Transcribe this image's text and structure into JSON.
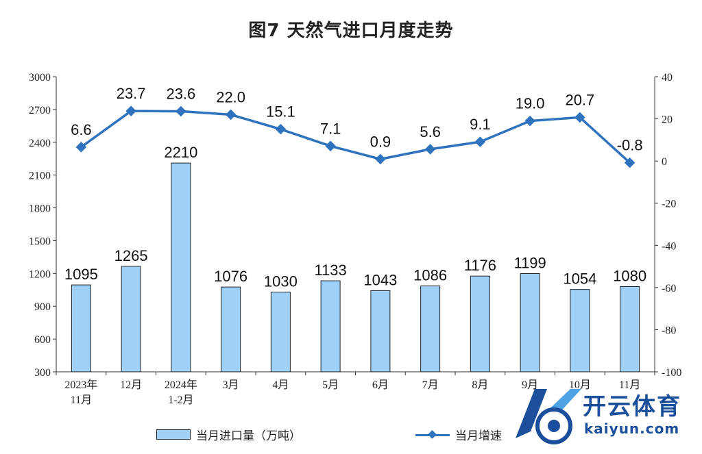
{
  "title": "图7  天然气进口月度走势",
  "legend": {
    "bar_label": "当月进口量（万吨）",
    "line_label": "当月增速"
  },
  "watermark": {
    "name": "开云体育",
    "domain": "kaiyun.com"
  },
  "colors": {
    "bar_fill": "#9fd0f7",
    "bar_stroke": "#222222",
    "line": "#2f73bf"
  },
  "chart_data": {
    "type": "bar+line",
    "categories": [
      "2023年\n11月",
      "12月",
      "2024年\n1-2月",
      "3月",
      "4月",
      "5月",
      "6月",
      "7月",
      "8月",
      "9月",
      "10月",
      "11月"
    ],
    "series": [
      {
        "name": "当月进口量（万吨）",
        "type": "bar",
        "axis": "left",
        "values": [
          1095,
          1265,
          2210,
          1076,
          1030,
          1133,
          1043,
          1086,
          1176,
          1199,
          1054,
          1080
        ]
      },
      {
        "name": "当月增速",
        "type": "line",
        "axis": "right",
        "values": [
          6.6,
          23.7,
          23.6,
          22.0,
          15.1,
          7.1,
          0.9,
          5.6,
          9.1,
          19.0,
          20.7,
          -0.8
        ]
      }
    ],
    "value_labels_line": [
      "6.6",
      "23.7",
      "23.6",
      "22.0",
      "15.1",
      "7.1",
      "0.9",
      "5.6",
      "9.1",
      "19.0",
      "20.7",
      "-0.8"
    ],
    "left_axis": {
      "ylim": [
        300,
        3000
      ],
      "ticks": [
        "300",
        "600",
        "900",
        "1200",
        "1500",
        "1800",
        "2100",
        "2400",
        "2700",
        "3000"
      ]
    },
    "right_axis": {
      "ylim": [
        -100,
        40
      ],
      "ticks": [
        "-100",
        "-80",
        "-60",
        "-40",
        "-20",
        "0",
        "20",
        "40"
      ]
    },
    "grid": false,
    "legend_position": "bottom"
  }
}
